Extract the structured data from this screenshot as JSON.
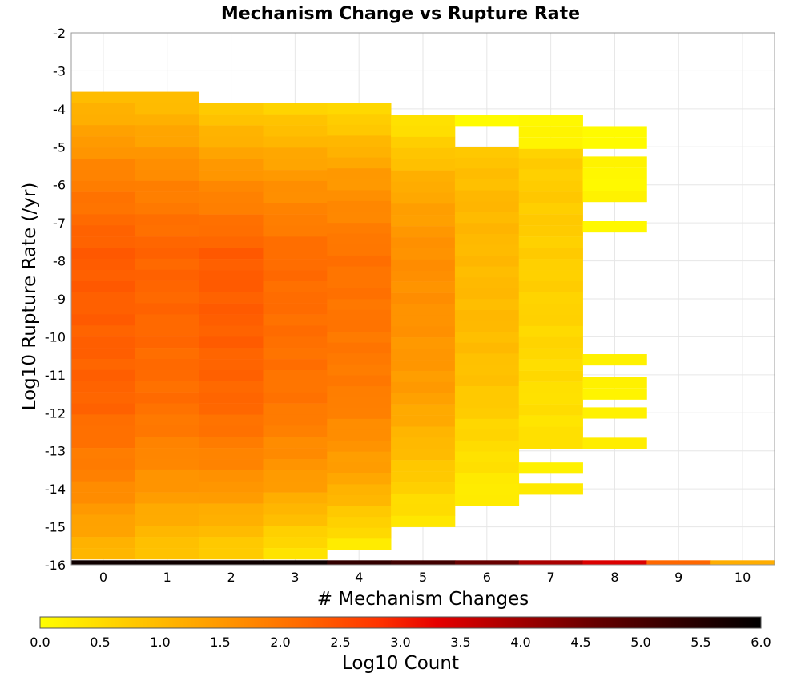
{
  "chart_data": {
    "type": "heatmap",
    "title": "Mechanism Change vs Rupture Rate",
    "xlabel": "# Mechanism Changes",
    "ylabel": "Log10 Rupture Rate (/yr)",
    "xlim": [
      -0.5,
      10.5
    ],
    "ylim": [
      -16,
      -2
    ],
    "x_ticks": [
      "0",
      "1",
      "2",
      "3",
      "4",
      "5",
      "6",
      "7",
      "8",
      "9",
      "10"
    ],
    "y_ticks": [
      "-2",
      "-3",
      "-4",
      "-5",
      "-6",
      "-7",
      "-8",
      "-9",
      "-10",
      "-11",
      "-12",
      "-13",
      "-14",
      "-15",
      "-16"
    ],
    "y_bin_width": 0.29,
    "grid": true,
    "colorbar": {
      "label": "Log10 Count",
      "range": [
        0.0,
        6.0
      ],
      "ticks": [
        "0.0",
        "0.5",
        "1.0",
        "1.5",
        "2.0",
        "2.5",
        "3.0",
        "3.5",
        "4.0",
        "4.5",
        "5.0",
        "5.5",
        "6.0"
      ],
      "colors": [
        "#ffff00",
        "#ffcc00",
        "#ff9900",
        "#ff6600",
        "#ff3300",
        "#e60000",
        "#aa0000",
        "#660000",
        "#330000",
        "#000000"
      ],
      "color_positions": [
        0.0,
        0.12,
        0.25,
        0.37,
        0.47,
        0.55,
        0.65,
        0.77,
        0.88,
        1.0
      ]
    },
    "columns": [
      {
        "x": 0,
        "y_top": -3.55,
        "y_bottom": -15.85,
        "profile": [
          0.9,
          1.8,
          2.35,
          2.3,
          2.25,
          1.8,
          1.0
        ]
      },
      {
        "x": 1,
        "y_top": -3.55,
        "y_bottom": -15.85,
        "profile": [
          0.85,
          1.7,
          2.25,
          2.2,
          2.1,
          1.6,
          0.75
        ]
      },
      {
        "x": 2,
        "y_top": -3.85,
        "y_bottom": -15.85,
        "profile": [
          0.7,
          1.65,
          2.35,
          2.3,
          2.2,
          1.6,
          0.6
        ]
      },
      {
        "x": 3,
        "y_top": -3.85,
        "y_bottom": -15.85,
        "profile": [
          0.6,
          1.55,
          2.15,
          2.1,
          2.0,
          1.45,
          0.3
        ]
      },
      {
        "x": 4,
        "y_top": -3.85,
        "y_bottom": -15.6,
        "profile": [
          0.45,
          1.5,
          2.05,
          2.0,
          1.9,
          1.35,
          0.25
        ]
      },
      {
        "x": 5,
        "y_top": -4.15,
        "y_bottom": -15.0,
        "profile": [
          0.3,
          1.2,
          1.65,
          1.6,
          1.45,
          0.9,
          0.3
        ]
      },
      {
        "x": 6,
        "y_top": -5.0,
        "y_bottom": -14.45,
        "profile": [
          0.8,
          1.05,
          1.0,
          1.0,
          0.85,
          0.5,
          0.2
        ]
      },
      {
        "x": 7,
        "y_top": -5.0,
        "y_bottom": -12.95,
        "profile": [
          0.65,
          0.75,
          0.7,
          0.65,
          0.55,
          0.45,
          0.4
        ]
      },
      {
        "x": 8,
        "y_top": -5.25,
        "y_bottom": -6.45,
        "profile": [
          0.12,
          0.12
        ]
      }
    ],
    "isolated_cells": [
      {
        "x": 6,
        "y": -4.3,
        "value": 0.05
      },
      {
        "x": 7,
        "y": -4.3,
        "value": 0.1
      },
      {
        "x": 7,
        "y": -4.6,
        "value": 0.15
      },
      {
        "x": 7,
        "y": -4.9,
        "value": 0.15
      },
      {
        "x": 8,
        "y": -4.6,
        "value": 0.05
      },
      {
        "x": 8,
        "y": -4.9,
        "value": 0.05
      },
      {
        "x": 8,
        "y": -7.1,
        "value": 0.1
      },
      {
        "x": 8,
        "y": -10.6,
        "value": 0.2
      },
      {
        "x": 8,
        "y": -11.2,
        "value": 0.2
      },
      {
        "x": 8,
        "y": -11.5,
        "value": 0.15
      },
      {
        "x": 8,
        "y": -12.0,
        "value": 0.2
      },
      {
        "x": 8,
        "y": -12.8,
        "value": 0.25
      },
      {
        "x": 7,
        "y": -13.45,
        "value": 0.2
      },
      {
        "x": 7,
        "y": -14.0,
        "value": 0.3
      }
    ],
    "bottom_row": {
      "y": -16.0,
      "values": [
        5.8,
        5.8,
        5.8,
        5.8,
        5.3,
        5.1,
        4.6,
        3.9,
        3.4,
        2.2,
        1.2
      ]
    }
  }
}
